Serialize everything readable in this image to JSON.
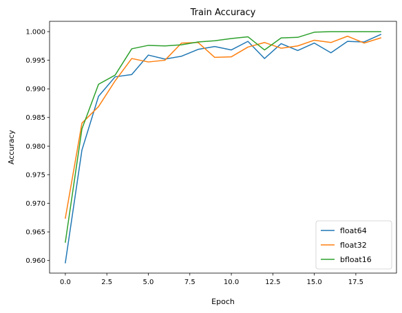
{
  "chart_data": {
    "type": "line",
    "title": "Train Accuracy",
    "xlabel": "Epoch",
    "ylabel": "Accuracy",
    "xlim": [
      -0.95,
      19.95
    ],
    "ylim": [
      0.9578,
      1.0018
    ],
    "xticks": [
      0.0,
      2.5,
      5.0,
      7.5,
      10.0,
      12.5,
      15.0,
      17.5
    ],
    "xtick_labels": [
      "0.0",
      "2.5",
      "5.0",
      "7.5",
      "10.0",
      "12.5",
      "15.0",
      "17.5"
    ],
    "yticks": [
      0.96,
      0.965,
      0.97,
      0.975,
      0.98,
      0.985,
      0.99,
      0.995,
      1.0
    ],
    "ytick_labels": [
      "0.960",
      "0.965",
      "0.970",
      "0.975",
      "0.980",
      "0.985",
      "0.990",
      "0.995",
      "1.000"
    ],
    "grid": false,
    "legend_position": "bottom-right",
    "x": [
      0,
      1,
      2,
      3,
      4,
      5,
      6,
      7,
      8,
      9,
      10,
      11,
      12,
      13,
      14,
      15,
      16,
      17,
      18,
      19
    ],
    "series": [
      {
        "name": "float64",
        "color": "#1f77b4",
        "values": [
          0.9596,
          0.9793,
          0.9887,
          0.9921,
          0.9925,
          0.9959,
          0.9952,
          0.9957,
          0.9969,
          0.9974,
          0.9968,
          0.9983,
          0.9953,
          0.9979,
          0.9967,
          0.998,
          0.9963,
          0.9983,
          0.9982,
          0.9995
        ]
      },
      {
        "name": "float32",
        "color": "#ff7f0e",
        "values": [
          0.9674,
          0.984,
          0.9869,
          0.9914,
          0.9953,
          0.9947,
          0.995,
          0.998,
          0.9981,
          0.9955,
          0.9956,
          0.9973,
          0.9981,
          0.9971,
          0.9975,
          0.9985,
          0.9981,
          0.9992,
          0.998,
          0.9989
        ]
      },
      {
        "name": "bfloat16",
        "color": "#2ca02c",
        "values": [
          0.9632,
          0.983,
          0.9908,
          0.9924,
          0.997,
          0.9976,
          0.9975,
          0.9977,
          0.9982,
          0.9984,
          0.9988,
          0.9991,
          0.9968,
          0.9989,
          0.999,
          0.9999,
          1.0,
          1.0,
          1.0,
          1.0
        ]
      }
    ]
  }
}
